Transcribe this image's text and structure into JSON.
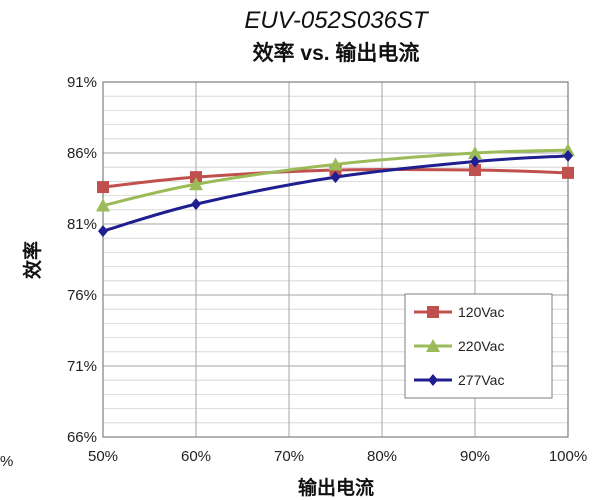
{
  "chart_data": {
    "type": "line",
    "title": "EUV-052S036ST",
    "subtitle": "效率 vs. 输出电流",
    "xlabel": "输出电流",
    "ylabel": "效率",
    "x_ticks": [
      "50%",
      "60%",
      "70%",
      "80%",
      "90%",
      "100%"
    ],
    "y_ticks": [
      "66%",
      "71%",
      "76%",
      "81%",
      "86%",
      "91%"
    ],
    "xlim": [
      50,
      100
    ],
    "ylim": [
      66,
      91
    ],
    "grid": true,
    "legend_position": "bottom-right",
    "stray_left_label": "%",
    "series": [
      {
        "name": "120Vac",
        "color": "#c0504d",
        "marker": "square",
        "x": [
          50,
          60,
          75,
          90,
          100
        ],
        "y": [
          83.6,
          84.3,
          84.8,
          84.8,
          84.6
        ]
      },
      {
        "name": "220Vac",
        "color": "#9bbb59",
        "marker": "triangle",
        "x": [
          50,
          60,
          75,
          90,
          100
        ],
        "y": [
          82.3,
          83.8,
          85.2,
          86.0,
          86.2
        ]
      },
      {
        "name": "277Vac",
        "color": "#1f1f8f",
        "marker": "diamond",
        "x": [
          50,
          60,
          75,
          90,
          100
        ],
        "y": [
          80.5,
          82.4,
          84.3,
          85.4,
          85.8
        ]
      }
    ]
  }
}
